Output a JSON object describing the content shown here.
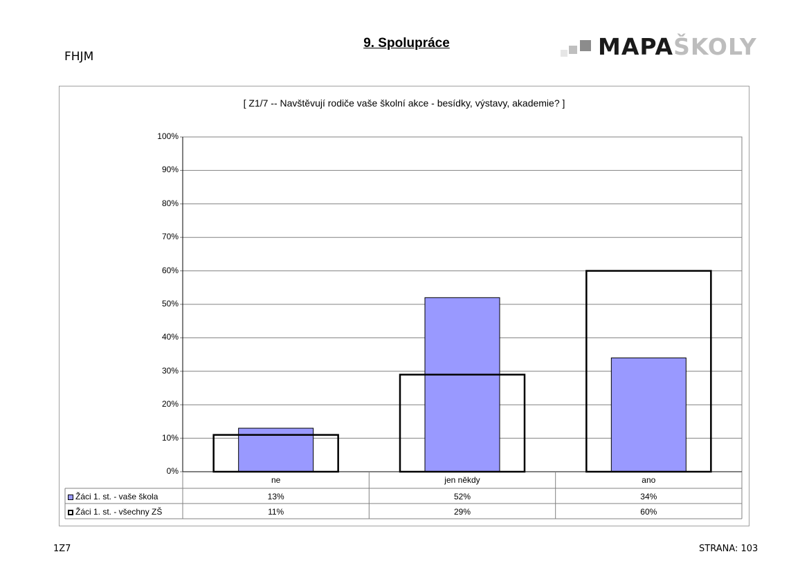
{
  "header": {
    "school_code": "FHJM",
    "section_title": "9. Spolupráce",
    "logo_dark": "MAPA",
    "logo_light": "ŠKOLY"
  },
  "chart_data": {
    "type": "bar",
    "title": "[ Z1/7 -- Navštěvují rodiče vaše školní akce - besídky, výstavy, akademie? ]",
    "categories": [
      "ne",
      "jen někdy",
      "ano"
    ],
    "series": [
      {
        "name": "Žáci 1. st. - vaše škola",
        "values": [
          13,
          52,
          34
        ],
        "labels": [
          "13%",
          "52%",
          "34%"
        ],
        "color": "#9999ff"
      },
      {
        "name": "Žáci 1. st. - všechny ZŠ",
        "values": [
          11,
          29,
          60
        ],
        "labels": [
          "11%",
          "29%",
          "60%"
        ],
        "color": "#ffffff"
      }
    ],
    "ylim": [
      0,
      100
    ],
    "yticks": [
      "0%",
      "10%",
      "20%",
      "30%",
      "40%",
      "50%",
      "60%",
      "70%",
      "80%",
      "90%",
      "100%"
    ],
    "grid": true,
    "legend": "data-table"
  },
  "footer": {
    "code": "1Z7",
    "page": "STRANA: 103"
  }
}
